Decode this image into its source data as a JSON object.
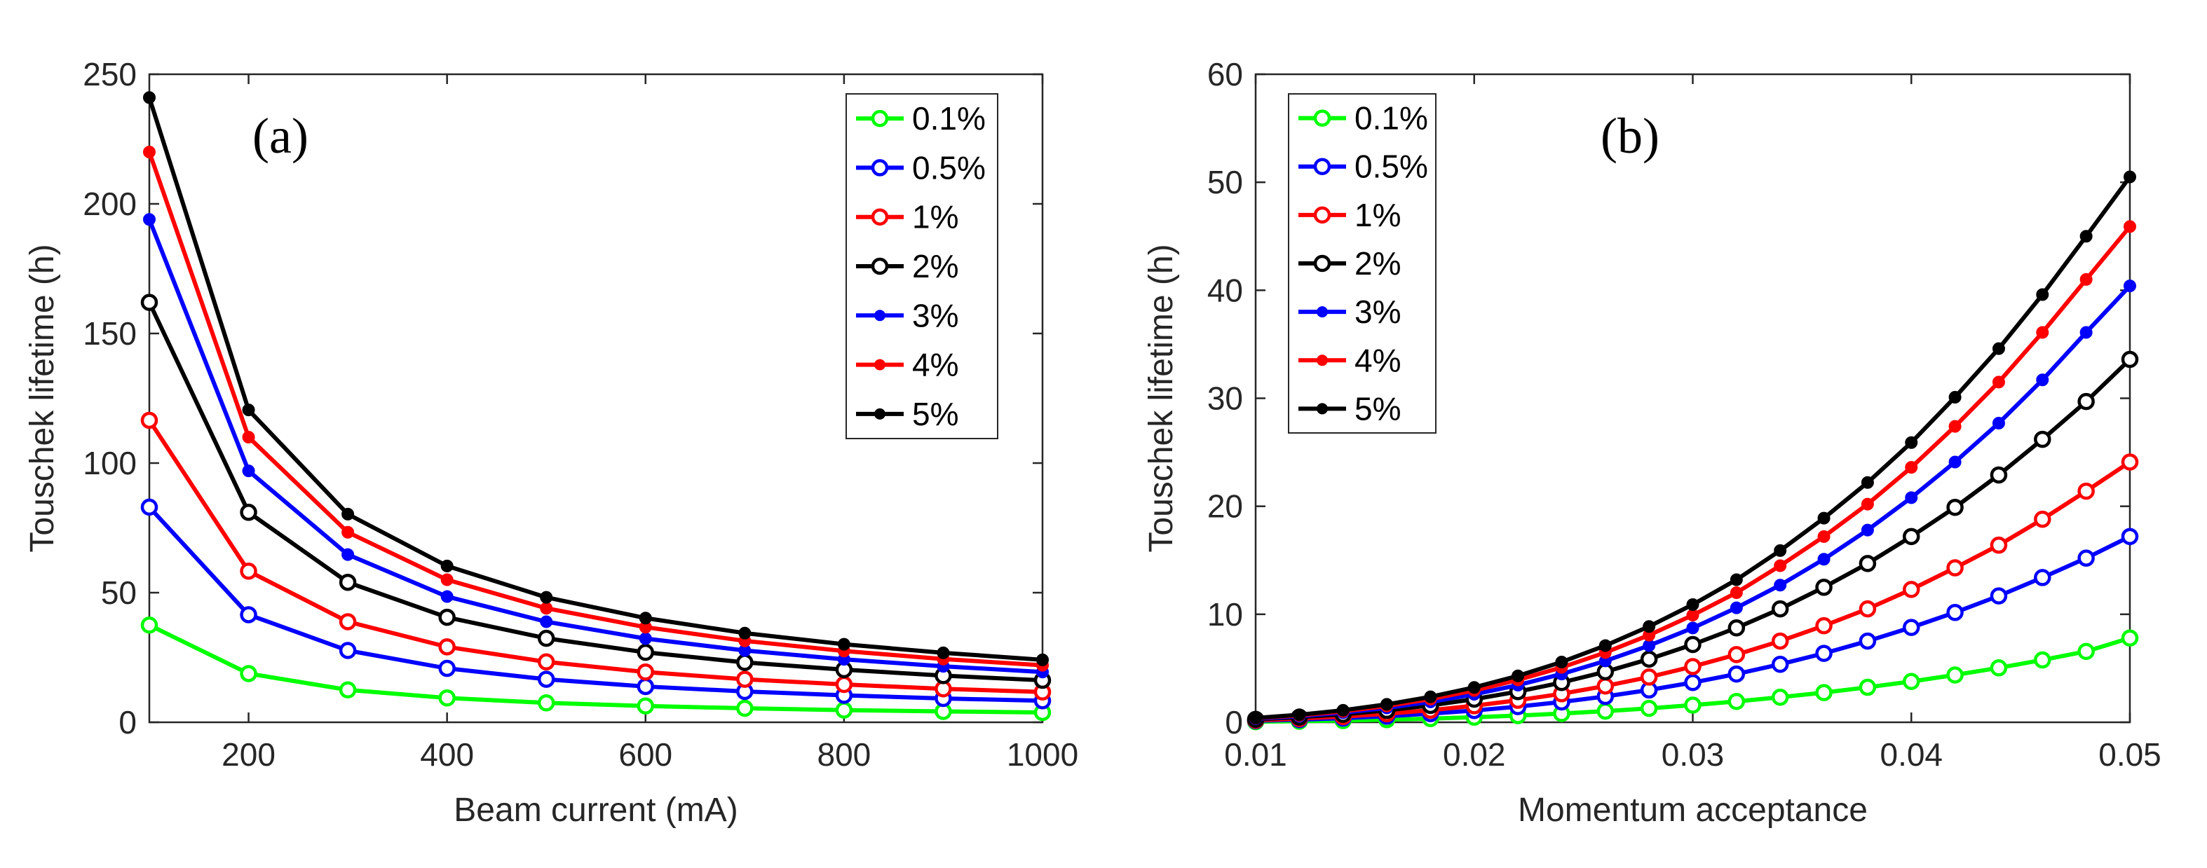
{
  "chart_data": [
    {
      "type": "line",
      "panel_label": "(a)",
      "xlabel": "Beam current (mA)",
      "ylabel": "Touschek lifetime (h)",
      "xlim": [
        100,
        1000
      ],
      "ylim": [
        0,
        250
      ],
      "xticks": [
        200,
        400,
        600,
        800,
        1000
      ],
      "yticks": [
        0,
        50,
        100,
        150,
        200,
        250
      ],
      "legend_position": "top-right",
      "x": [
        100,
        200,
        300,
        400,
        500,
        600,
        700,
        800,
        900,
        1000
      ],
      "series": [
        {
          "name": "0.1%",
          "color": "#00ff00",
          "marker": "open",
          "values": [
            37.5,
            18.8,
            12.5,
            9.4,
            7.5,
            6.3,
            5.4,
            4.7,
            4.2,
            3.8
          ]
        },
        {
          "name": "0.5%",
          "color": "#0000ff",
          "marker": "open",
          "values": [
            83,
            41.5,
            27.7,
            20.8,
            16.6,
            13.8,
            11.9,
            10.4,
            9.2,
            8.3
          ]
        },
        {
          "name": "1%",
          "color": "#ff0000",
          "marker": "open",
          "values": [
            116.5,
            58.3,
            38.8,
            29.1,
            23.3,
            19.4,
            16.6,
            14.6,
            12.9,
            11.7
          ]
        },
        {
          "name": "2%",
          "color": "#000000",
          "marker": "open",
          "values": [
            162,
            81,
            54,
            40.5,
            32.4,
            27,
            23.1,
            20.3,
            18,
            16.2
          ]
        },
        {
          "name": "3%",
          "color": "#0000ff",
          "marker": "filled",
          "values": [
            194,
            97,
            64.7,
            48.5,
            38.8,
            32.3,
            27.7,
            24.3,
            21.6,
            19.4
          ]
        },
        {
          "name": "4%",
          "color": "#ff0000",
          "marker": "filled",
          "values": [
            220,
            110,
            73.3,
            55,
            44,
            36.7,
            31.4,
            27.5,
            24.4,
            22
          ]
        },
        {
          "name": "5%",
          "color": "#000000",
          "marker": "filled",
          "values": [
            241,
            120.5,
            80.3,
            60.3,
            48.2,
            40.2,
            34.4,
            30.1,
            26.8,
            24.1
          ]
        }
      ]
    },
    {
      "type": "line",
      "panel_label": "(b)",
      "xlabel": "Momentum acceptance",
      "ylabel": "Touschek  lifetime (h)",
      "xlim": [
        0.01,
        0.05
      ],
      "ylim": [
        0,
        60
      ],
      "xticks": [
        0.01,
        0.02,
        0.03,
        0.04,
        0.05
      ],
      "xtick_labels": [
        "0.01",
        "0.02",
        "0.03",
        "0.04",
        "0.05"
      ],
      "yticks": [
        0,
        10,
        20,
        30,
        40,
        50,
        60
      ],
      "legend_position": "top-left",
      "x": [
        0.01,
        0.012,
        0.014,
        0.016,
        0.018,
        0.02,
        0.022,
        0.024,
        0.026,
        0.028,
        0.03,
        0.032,
        0.034,
        0.036,
        0.038,
        0.04,
        0.042,
        0.044,
        0.046,
        0.048,
        0.05
      ],
      "series": [
        {
          "name": "0.1%",
          "color": "#00ff00",
          "marker": "open",
          "values": [
            0.06,
            0.1,
            0.16,
            0.24,
            0.34,
            0.47,
            0.62,
            0.81,
            1.03,
            1.29,
            1.59,
            1.93,
            2.32,
            2.75,
            3.24,
            3.78,
            4.38,
            5.04,
            5.77,
            6.56,
            7.8
          ]
        },
        {
          "name": "0.5%",
          "color": "#0000ff",
          "marker": "open",
          "values": [
            0.14,
            0.24,
            0.38,
            0.56,
            0.8,
            1.09,
            1.45,
            1.88,
            2.39,
            2.99,
            3.68,
            4.47,
            5.37,
            6.38,
            7.52,
            8.78,
            10.17,
            11.7,
            13.4,
            15.2,
            17.2
          ]
        },
        {
          "name": "1%",
          "color": "#ff0000",
          "marker": "open",
          "values": [
            0.19,
            0.34,
            0.53,
            0.79,
            1.12,
            1.53,
            2.04,
            2.64,
            3.36,
            4.19,
            5.16,
            6.27,
            7.52,
            8.94,
            10.5,
            12.3,
            14.3,
            16.4,
            18.8,
            21.4,
            24.1
          ]
        },
        {
          "name": "2%",
          "color": "#000000",
          "marker": "open",
          "values": [
            0.27,
            0.47,
            0.74,
            1.1,
            1.56,
            2.14,
            2.84,
            3.68,
            4.68,
            5.85,
            7.2,
            8.74,
            10.5,
            12.5,
            14.7,
            17.2,
            19.9,
            22.9,
            26.2,
            29.7,
            33.6
          ]
        },
        {
          "name": "3%",
          "color": "#0000ff",
          "marker": "filled",
          "values": [
            0.32,
            0.56,
            0.89,
            1.33,
            1.89,
            2.59,
            3.44,
            4.47,
            5.68,
            7.1,
            8.73,
            10.6,
            12.7,
            15.1,
            17.8,
            20.8,
            24.1,
            27.7,
            31.7,
            36.1,
            40.4
          ]
        },
        {
          "name": "4%",
          "color": "#ff0000",
          "marker": "filled",
          "values": [
            0.37,
            0.64,
            1.01,
            1.51,
            2.15,
            2.94,
            3.92,
            5.08,
            6.46,
            8.07,
            9.92,
            12.0,
            14.5,
            17.2,
            20.2,
            23.6,
            27.4,
            31.5,
            36.1,
            41.0,
            45.9
          ]
        },
        {
          "name": "5%",
          "color": "#000000",
          "marker": "filled",
          "values": [
            0.4,
            0.7,
            1.11,
            1.66,
            2.36,
            3.23,
            4.3,
            5.58,
            7.1,
            8.87,
            10.9,
            13.2,
            15.9,
            18.9,
            22.2,
            25.9,
            30.1,
            34.6,
            39.6,
            45.0,
            50.5
          ]
        }
      ]
    }
  ]
}
